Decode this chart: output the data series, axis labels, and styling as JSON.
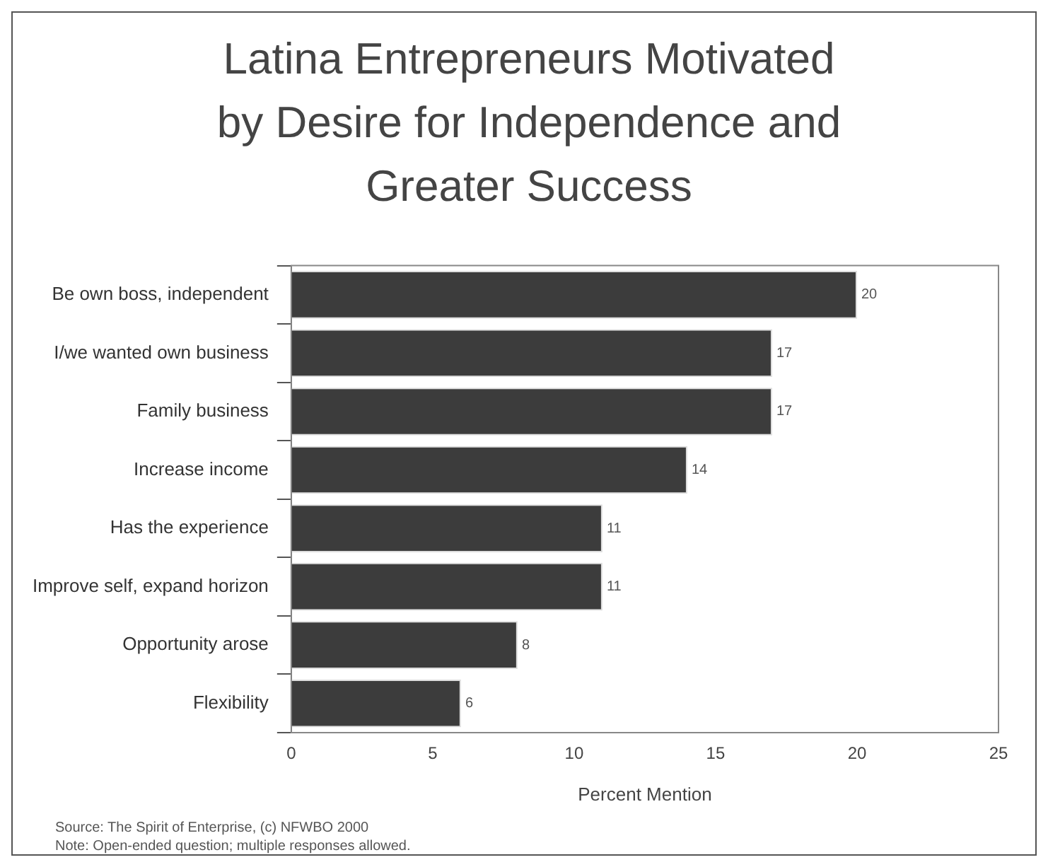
{
  "chart_data": {
    "type": "bar",
    "orientation": "horizontal",
    "title": "Latina Entrepreneurs Motivated by Desire for Independence and Greater Success",
    "categories": [
      "Be own boss, independent",
      "I/we wanted own business",
      "Family business",
      "Increase income",
      "Has the experience",
      "Improve self, expand horizon",
      "Opportunity arose",
      "Flexibility"
    ],
    "values": [
      20,
      17,
      17,
      14,
      11,
      11,
      8,
      6
    ],
    "color": "#3c3c3c",
    "data_labels": true,
    "xlim": [
      0,
      25
    ],
    "xticks": [
      0,
      5,
      10,
      15,
      20,
      25
    ],
    "xlabel": "Percent Mention",
    "grid": false,
    "legend": false,
    "annotations": [
      "Source: The Spirit of Enterprise, (c) NFWBO 2000",
      "Note: Open-ended question; multiple responses allowed."
    ]
  }
}
